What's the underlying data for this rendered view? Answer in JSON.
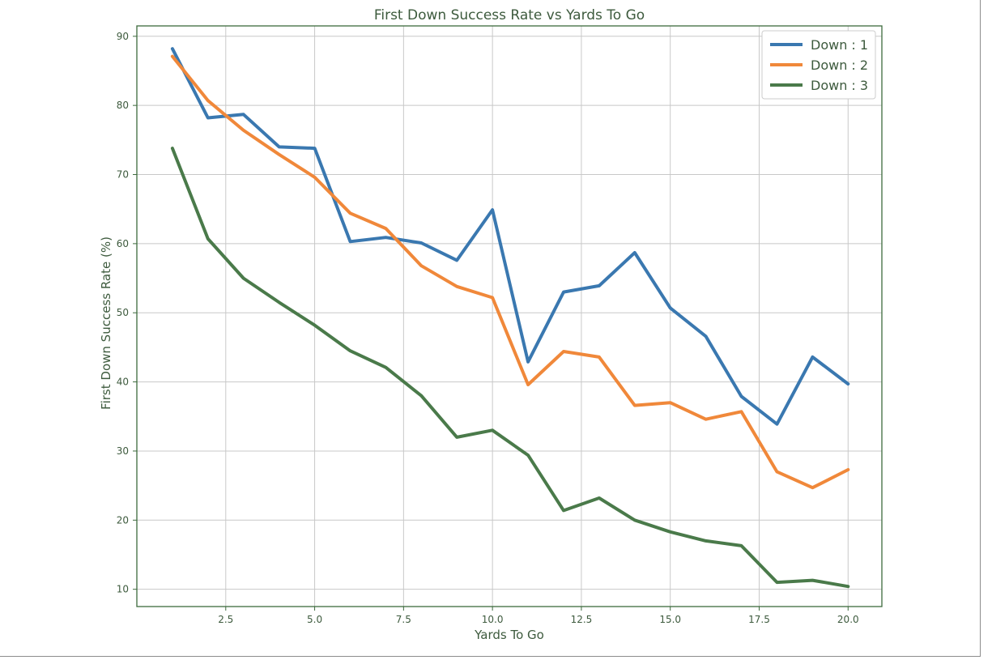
{
  "chart_data": {
    "type": "line",
    "title": "First Down Success Rate vs Yards To Go",
    "xlabel": "Yards To Go",
    "ylabel": "First Down Success Rate (%)",
    "xlim": [
      0.0,
      20.95
    ],
    "ylim": [
      7.5,
      91.5
    ],
    "xticks": [
      2.5,
      5.0,
      7.5,
      10.0,
      12.5,
      15.0,
      17.5,
      20.0
    ],
    "xtick_labels": [
      "2.5",
      "5.0",
      "7.5",
      "10.0",
      "12.5",
      "15.0",
      "17.5",
      "20.0"
    ],
    "yticks": [
      10,
      20,
      30,
      40,
      50,
      60,
      70,
      80,
      90
    ],
    "ytick_labels": [
      "10",
      "20",
      "30",
      "40",
      "50",
      "60",
      "70",
      "80",
      "90"
    ],
    "grid": true,
    "legend_position": "top-right",
    "x": [
      1,
      2,
      3,
      4,
      5,
      6,
      7,
      8,
      9,
      10,
      11,
      12,
      13,
      14,
      15,
      16,
      17,
      18,
      19,
      20
    ],
    "series": [
      {
        "name": "Down : 1",
        "color": "#3a78b0",
        "values": [
          88.2,
          78.2,
          78.7,
          74.0,
          73.8,
          60.3,
          60.9,
          60.1,
          57.6,
          64.9,
          42.9,
          53.0,
          53.9,
          58.7,
          50.7,
          46.6,
          37.9,
          33.9,
          43.6,
          39.7
        ]
      },
      {
        "name": "Down : 2",
        "color": "#f0883a",
        "values": [
          87.1,
          80.7,
          76.4,
          72.9,
          69.6,
          64.4,
          62.2,
          56.8,
          53.8,
          52.2,
          39.6,
          44.4,
          43.6,
          36.6,
          37.0,
          34.6,
          35.7,
          27.0,
          24.7,
          27.3
        ]
      },
      {
        "name": "Down : 3",
        "color": "#4a7a4a",
        "values": [
          73.8,
          60.7,
          55.0,
          51.5,
          48.2,
          44.5,
          42.1,
          38.0,
          32.0,
          33.0,
          29.4,
          21.4,
          23.2,
          20.0,
          18.3,
          17.0,
          16.3,
          11.0,
          11.3,
          10.4
        ]
      }
    ],
    "text_color": "#3d5a3d",
    "axis_color": "#3d6b3d"
  }
}
